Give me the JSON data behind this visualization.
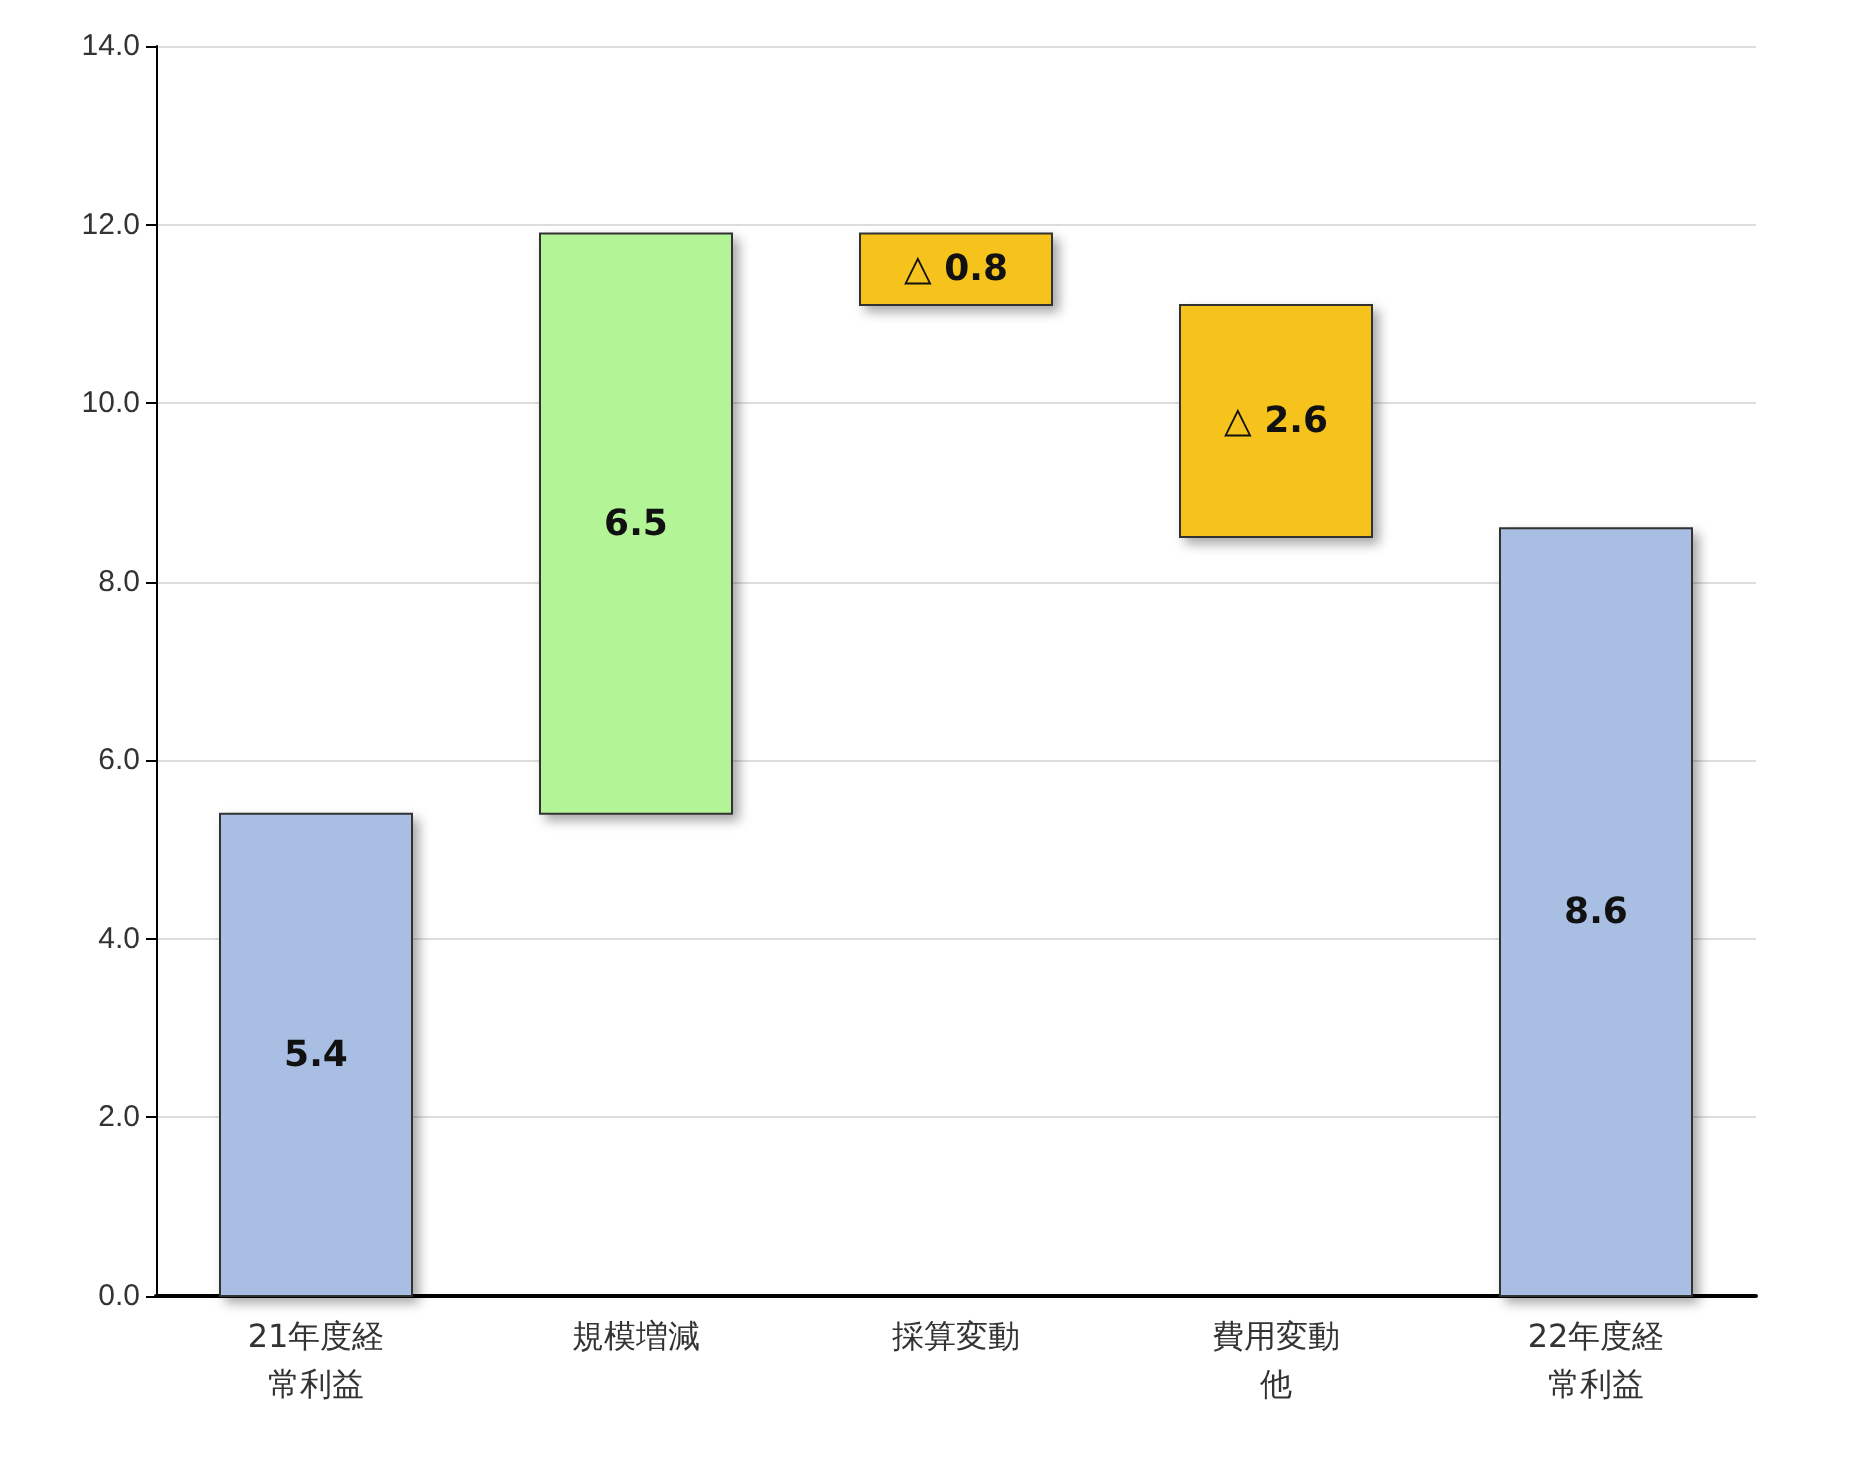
{
  "chart_data": {
    "type": "bar",
    "categories": [
      "21年度経常利益",
      "規模増減",
      "採算変動",
      "費用変動他",
      "22年度経常利益"
    ],
    "base": [
      0,
      5.4,
      11.9,
      11.1,
      0
    ],
    "values": [
      5.4,
      6.5,
      -0.8,
      -2.6,
      8.6
    ],
    "colors": [
      "#a9bee3",
      "#b3f596",
      "#f6c21c",
      "#f6c21c",
      "#a9bee3"
    ],
    "value_labels": [
      "5.4",
      "6.5",
      "△ 0.8",
      "△ 2.6",
      "8.6"
    ],
    "ylim": [
      0,
      14
    ],
    "yticks": [
      {
        "value": 0,
        "label": "0.0"
      },
      {
        "value": 2,
        "label": "2.0"
      },
      {
        "value": 4,
        "label": "4.0"
      },
      {
        "value": 6,
        "label": "6.0"
      },
      {
        "value": 8,
        "label": "8.0"
      },
      {
        "value": 10,
        "label": "10.0"
      },
      {
        "value": 12,
        "label": "12.0"
      },
      {
        "value": 14,
        "label": "14.0"
      }
    ],
    "grid": "y"
  }
}
